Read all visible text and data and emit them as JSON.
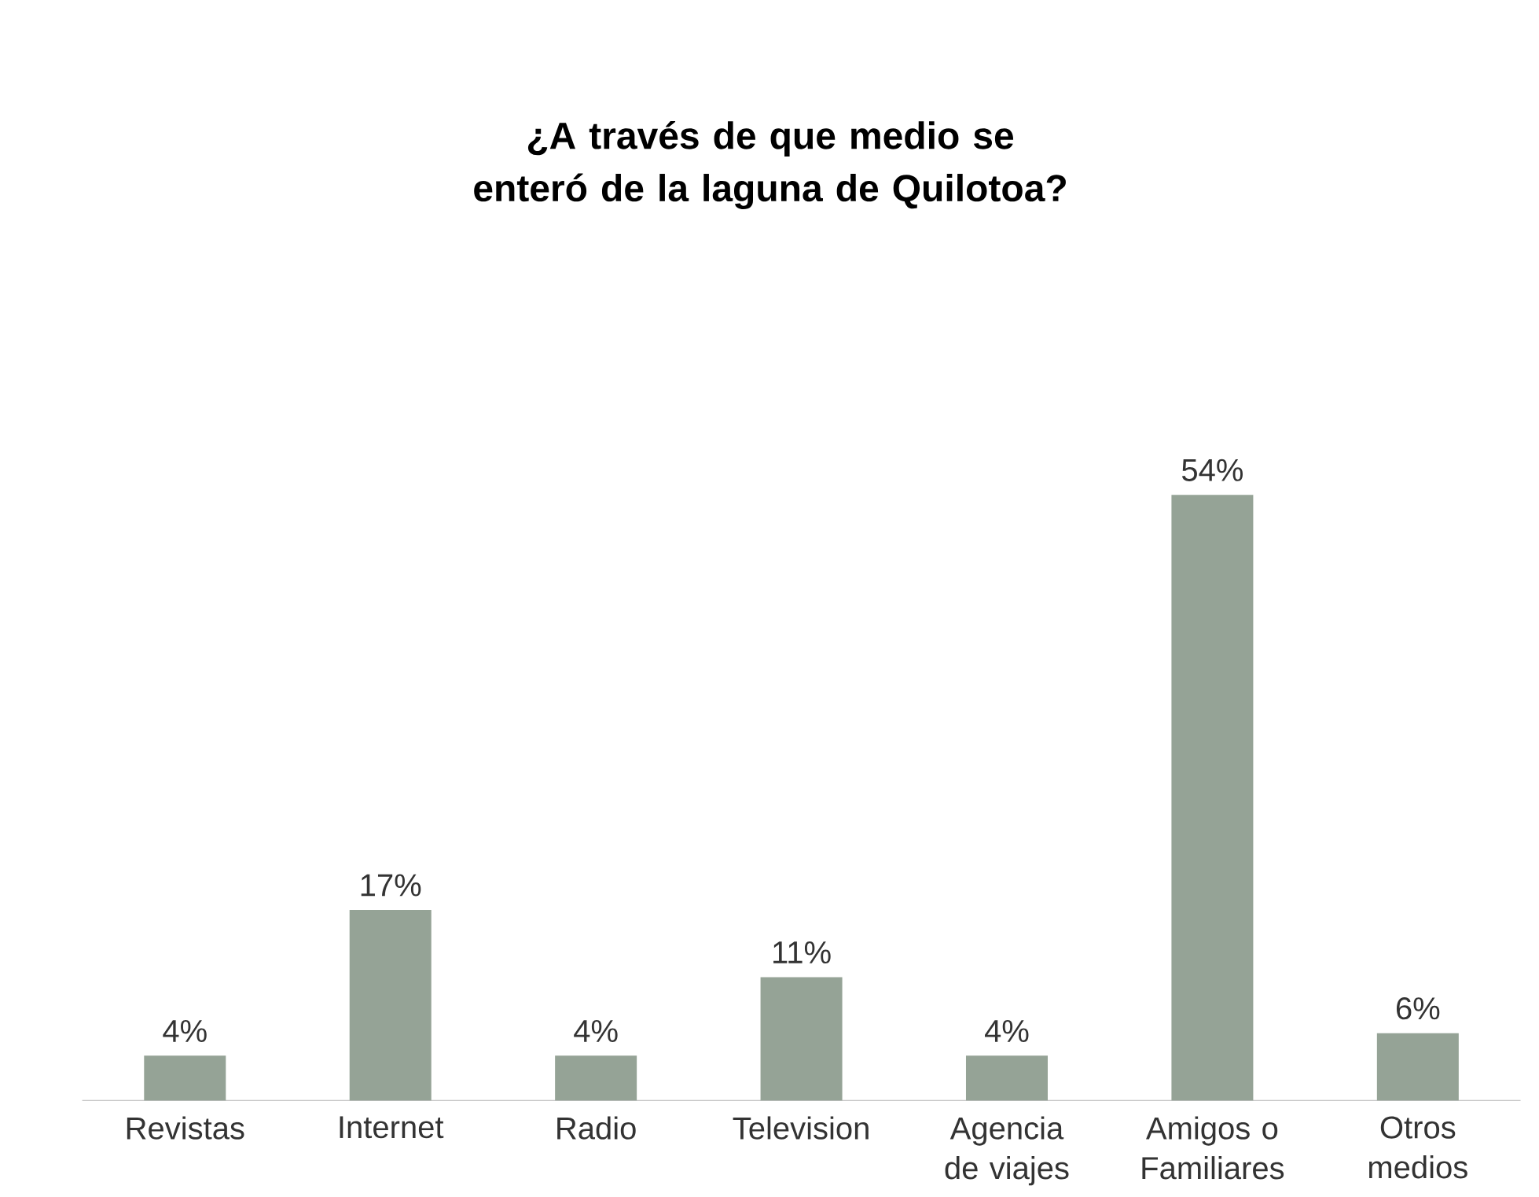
{
  "chart_data": {
    "type": "bar",
    "title": "¿A través de que medio se enteró de la laguna de Quilotoa?",
    "categories": [
      "Revistas",
      "Internet",
      "Radio",
      "Television",
      "Agencia de viajes",
      "Amigos o Familiares",
      "Otros medios"
    ],
    "values": [
      4,
      17,
      4,
      11,
      4,
      54,
      6
    ],
    "value_labels": [
      "4%",
      "17%",
      "4%",
      "11%",
      "4%",
      "54%",
      "6%"
    ],
    "color": "#95a396"
  }
}
